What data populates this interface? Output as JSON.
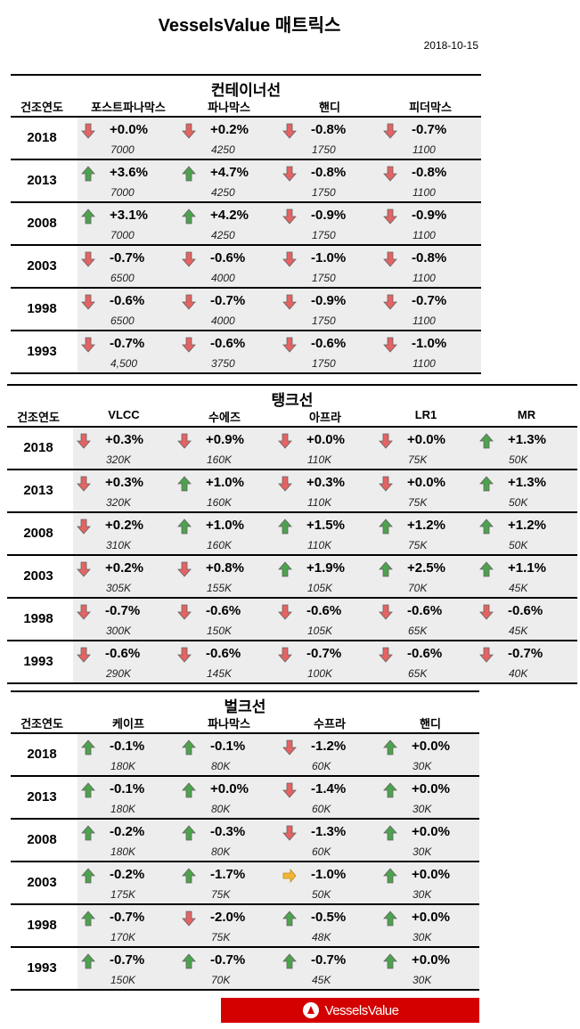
{
  "title": "VesselsValue 매트릭스",
  "date": "2018-10-15",
  "colors": {
    "up": "#3c9a3c",
    "down": "#e45555",
    "flat": "#f0b020",
    "logo_bg": "#d40000",
    "cell_bg": "#ededed"
  },
  "logo": {
    "text": "VesselsValue",
    "icon": "vesselsvalue-logo-icon"
  },
  "sections": [
    {
      "title": "컨테이너선",
      "year_header": "건조연도",
      "columns": [
        "포스트파나막스",
        "파나막스",
        "핸디",
        "피더막스"
      ],
      "rows": [
        {
          "year": "2018",
          "cells": [
            [
              "down",
              "+0.0%",
              "7000"
            ],
            [
              "down",
              "+0.2%",
              "4250"
            ],
            [
              "down",
              "-0.8%",
              "1750"
            ],
            [
              "down",
              "-0.7%",
              "1100"
            ]
          ]
        },
        {
          "year": "2013",
          "cells": [
            [
              "up",
              "+3.6%",
              "7000"
            ],
            [
              "up",
              "+4.7%",
              "4250"
            ],
            [
              "down",
              "-0.8%",
              "1750"
            ],
            [
              "down",
              "-0.8%",
              "1100"
            ]
          ]
        },
        {
          "year": "2008",
          "cells": [
            [
              "up",
              "+3.1%",
              "7000"
            ],
            [
              "up",
              "+4.2%",
              "4250"
            ],
            [
              "down",
              "-0.9%",
              "1750"
            ],
            [
              "down",
              "-0.9%",
              "1100"
            ]
          ]
        },
        {
          "year": "2003",
          "cells": [
            [
              "down",
              "-0.7%",
              "6500"
            ],
            [
              "down",
              "-0.6%",
              "4000"
            ],
            [
              "down",
              "-1.0%",
              "1750"
            ],
            [
              "down",
              "-0.8%",
              "1100"
            ]
          ]
        },
        {
          "year": "1998",
          "cells": [
            [
              "down",
              "-0.6%",
              "6500"
            ],
            [
              "down",
              "-0.7%",
              "4000"
            ],
            [
              "down",
              "-0.9%",
              "1750"
            ],
            [
              "down",
              "-0.7%",
              "1100"
            ]
          ]
        },
        {
          "year": "1993",
          "cells": [
            [
              "down",
              "-0.7%",
              "4,500"
            ],
            [
              "down",
              "-0.6%",
              "3750"
            ],
            [
              "down",
              "-0.6%",
              "1750"
            ],
            [
              "down",
              "-1.0%",
              "1100"
            ]
          ]
        }
      ]
    },
    {
      "title": "탱크선",
      "year_header": "건조연도",
      "columns": [
        "VLCC",
        "수에즈",
        "아프라",
        "LR1",
        "MR"
      ],
      "rows": [
        {
          "year": "2018",
          "cells": [
            [
              "down",
              "+0.3%",
              "320K"
            ],
            [
              "down",
              "+0.9%",
              "160K"
            ],
            [
              "down",
              "+0.0%",
              "110K"
            ],
            [
              "down",
              "+0.0%",
              "75K"
            ],
            [
              "up",
              "+1.3%",
              "50K"
            ]
          ]
        },
        {
          "year": "2013",
          "cells": [
            [
              "down",
              "+0.3%",
              "320K"
            ],
            [
              "up",
              "+1.0%",
              "160K"
            ],
            [
              "down",
              "+0.3%",
              "110K"
            ],
            [
              "down",
              "+0.0%",
              "75K"
            ],
            [
              "up",
              "+1.3%",
              "50K"
            ]
          ]
        },
        {
          "year": "2008",
          "cells": [
            [
              "down",
              "+0.2%",
              "310K"
            ],
            [
              "up",
              "+1.0%",
              "160K"
            ],
            [
              "up",
              "+1.5%",
              "110K"
            ],
            [
              "up",
              "+1.2%",
              "75K"
            ],
            [
              "up",
              "+1.2%",
              "50K"
            ]
          ]
        },
        {
          "year": "2003",
          "cells": [
            [
              "down",
              "+0.2%",
              "305K"
            ],
            [
              "down",
              "+0.8%",
              "155K"
            ],
            [
              "up",
              "+1.9%",
              "105K"
            ],
            [
              "up",
              "+2.5%",
              "70K"
            ],
            [
              "up",
              "+1.1%",
              "45K"
            ]
          ]
        },
        {
          "year": "1998",
          "cells": [
            [
              "down",
              "-0.7%",
              "300K"
            ],
            [
              "down",
              "-0.6%",
              "150K"
            ],
            [
              "down",
              "-0.6%",
              "105K"
            ],
            [
              "down",
              "-0.6%",
              "65K"
            ],
            [
              "down",
              "-0.6%",
              "45K"
            ]
          ]
        },
        {
          "year": "1993",
          "cells": [
            [
              "down",
              "-0.6%",
              "290K"
            ],
            [
              "down",
              "-0.6%",
              "145K"
            ],
            [
              "down",
              "-0.7%",
              "100K"
            ],
            [
              "down",
              "-0.6%",
              "65K"
            ],
            [
              "down",
              "-0.7%",
              "40K"
            ]
          ]
        }
      ]
    },
    {
      "title": "벌크선",
      "year_header": "건조연도",
      "columns": [
        "케이프",
        "파나막스",
        "수프라",
        "핸디"
      ],
      "rows": [
        {
          "year": "2018",
          "cells": [
            [
              "up",
              "-0.1%",
              "180K"
            ],
            [
              "up",
              "-0.1%",
              "80K"
            ],
            [
              "down",
              "-1.2%",
              "60K"
            ],
            [
              "up",
              "+0.0%",
              "30K"
            ]
          ]
        },
        {
          "year": "2013",
          "cells": [
            [
              "up",
              "-0.1%",
              "180K"
            ],
            [
              "up",
              "+0.0%",
              "80K"
            ],
            [
              "down",
              "-1.4%",
              "60K"
            ],
            [
              "up",
              "+0.0%",
              "30K"
            ]
          ]
        },
        {
          "year": "2008",
          "cells": [
            [
              "up",
              "-0.2%",
              "180K"
            ],
            [
              "up",
              "-0.3%",
              "80K"
            ],
            [
              "down",
              "-1.3%",
              "60K"
            ],
            [
              "up",
              "+0.0%",
              "30K"
            ]
          ]
        },
        {
          "year": "2003",
          "cells": [
            [
              "up",
              "-0.2%",
              "175K"
            ],
            [
              "up",
              "-1.7%",
              "75K"
            ],
            [
              "right",
              "-1.0%",
              "50K"
            ],
            [
              "up",
              "+0.0%",
              "30K"
            ]
          ]
        },
        {
          "year": "1998",
          "cells": [
            [
              "up",
              "-0.7%",
              "170K"
            ],
            [
              "down",
              "-2.0%",
              "75K"
            ],
            [
              "up",
              "-0.5%",
              "48K"
            ],
            [
              "up",
              "+0.0%",
              "30K"
            ]
          ]
        },
        {
          "year": "1993",
          "cells": [
            [
              "up",
              "-0.7%",
              "150K"
            ],
            [
              "up",
              "-0.7%",
              "70K"
            ],
            [
              "up",
              "-0.7%",
              "45K"
            ],
            [
              "up",
              "+0.0%",
              "30K"
            ]
          ]
        }
      ]
    }
  ]
}
